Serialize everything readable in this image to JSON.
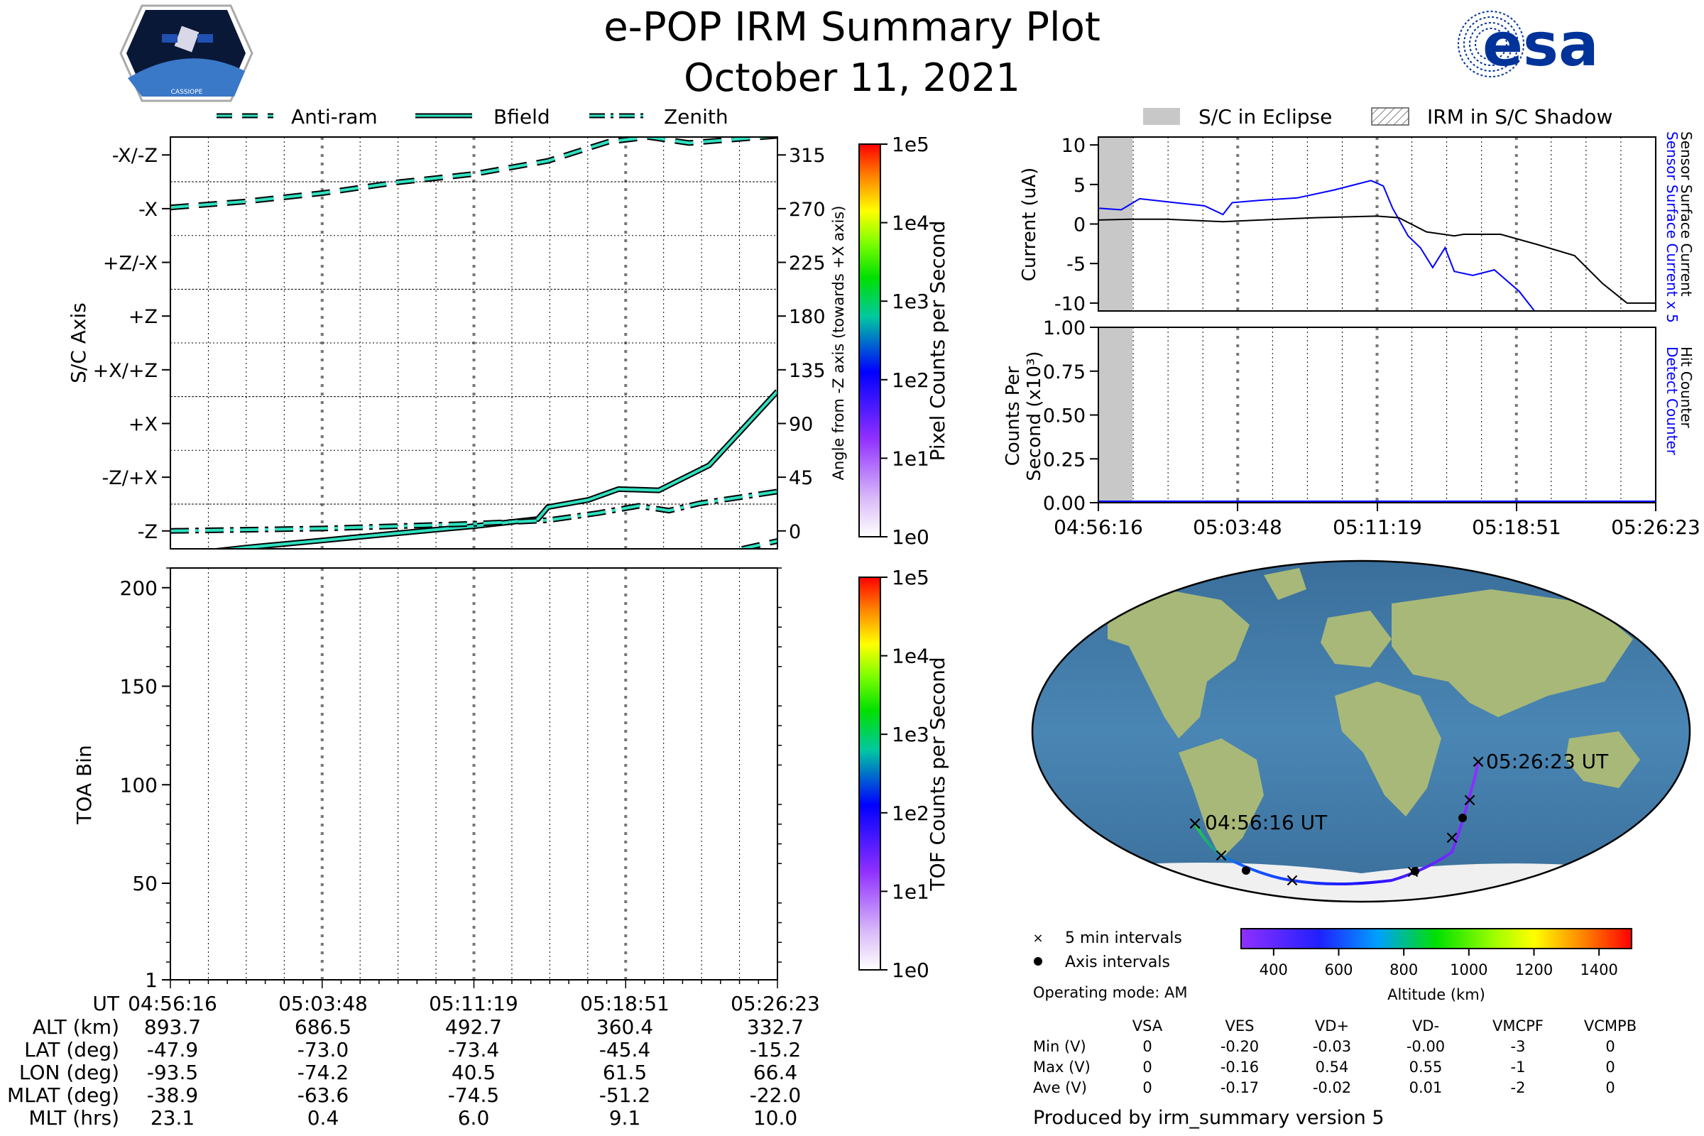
{
  "header": {
    "title": "e-POP IRM Summary Plot",
    "date": "October 11, 2021",
    "left_logo_text": "CASSIOPE",
    "right_logo_text": "esa"
  },
  "legend_axis": {
    "items": [
      "Anti-ram",
      "Bfield",
      "Zenith"
    ]
  },
  "legend_eclipse": {
    "items": [
      "S/C in Eclipse",
      "IRM in S/C Shadow"
    ]
  },
  "colors": {
    "accent_cyan": "#2fe0c0",
    "eclipse_gray": "#c8c8c8",
    "current_blue": "#0000ff"
  },
  "time_ticks": [
    "04:56:16",
    "05:03:48",
    "05:11:19",
    "05:18:51",
    "05:26:23"
  ],
  "ephemeris": {
    "ut_label": "UT",
    "rows": [
      {
        "label": "ALT (km)",
        "values": [
          "893.7",
          "686.5",
          "492.7",
          "360.4",
          "332.7"
        ]
      },
      {
        "label": "LAT (deg)",
        "values": [
          "-47.9",
          "-73.0",
          "-73.4",
          "-45.4",
          "-15.2"
        ]
      },
      {
        "label": "LON (deg)",
        "values": [
          "-93.5",
          "-74.2",
          "40.5",
          "61.5",
          "66.4"
        ]
      },
      {
        "label": "MLAT (deg)",
        "values": [
          "-38.9",
          "-63.6",
          "-74.5",
          "-51.2",
          "-22.0"
        ]
      },
      {
        "label": "MLT (hrs)",
        "values": [
          "23.1",
          "0.4",
          "6.0",
          "9.1",
          "10.0"
        ]
      }
    ]
  },
  "axis_panel": {
    "ylabel": "S/C Axis",
    "left_ticks": [
      "-X/-Z",
      "-X",
      "+Z/-X",
      "+Z",
      "+X/+Z",
      "+X",
      "-Z/+X",
      "-Z"
    ],
    "right_ticks": [
      "315",
      "270",
      "225",
      "180",
      "135",
      "90",
      "45",
      "0"
    ],
    "right_label": "Angle from -Z axis (towards +X axis)",
    "colorbar_label": "Pixel Counts per Second",
    "colorbar_ticks": [
      "1e5",
      "1e4",
      "1e3",
      "1e2",
      "1e1",
      "1e0"
    ]
  },
  "toa_panel": {
    "ylabel": "TOA Bin",
    "yticks": [
      "200",
      "150",
      "100",
      "50",
      "1"
    ],
    "colorbar_label": "TOF Counts per Second",
    "colorbar_ticks": [
      "1e5",
      "1e4",
      "1e3",
      "1e2",
      "1e1",
      "1e0"
    ]
  },
  "current_panel": {
    "ylabel": "Current (uA)",
    "yticks": [
      "10",
      "5",
      "0",
      "-5",
      "-10"
    ],
    "right_label_blue": "Sensor Surface Current x 5",
    "right_label_black": "Sensor Surface Current"
  },
  "counts_panel": {
    "ylabel_line1": "Counts Per",
    "ylabel_line2": "Second (x10³)",
    "yticks": [
      "1.00",
      "0.75",
      "0.50",
      "0.25",
      "0.00"
    ],
    "right_label_blue": "Detect Counter",
    "right_label_black": "Hit Counter"
  },
  "map": {
    "start_label": "04:56:16 UT",
    "end_label": "05:26:23 UT",
    "legend_5min": "5 min intervals",
    "legend_axis": "Axis intervals",
    "operating_mode": "Operating mode: AM",
    "altitude_label": "Altitude (km)",
    "altitude_ticks": [
      "400",
      "600",
      "800",
      "1000",
      "1200",
      "1400"
    ]
  },
  "voltage_table": {
    "columns": [
      "VSA",
      "VES",
      "VD+",
      "VD-",
      "VMCPF",
      "VCMPB"
    ],
    "rows": [
      {
        "label": "Min (V)",
        "values": [
          "0",
          "-0.20",
          "-0.03",
          "-0.00",
          "-3",
          "0"
        ]
      },
      {
        "label": "Max (V)",
        "values": [
          "0",
          "-0.16",
          "0.54",
          "0.55",
          "-1",
          "0"
        ]
      },
      {
        "label": "Ave (V)",
        "values": [
          "0",
          "-0.17",
          "-0.02",
          "0.01",
          "-2",
          "0"
        ]
      }
    ]
  },
  "footer": "Produced by irm_summary version 5",
  "chart_data": [
    {
      "type": "line",
      "title": "S/C Axis",
      "xlabel": "UT",
      "ylabel": "Angle from -Z axis (towards +X axis)",
      "x": [
        "04:56:16",
        "05:03:48",
        "05:11:19",
        "05:18:51",
        "05:26:23"
      ],
      "xlim": [
        "04:56:16",
        "05:26:23"
      ],
      "ylim": [
        -15,
        330
      ],
      "series": [
        {
          "name": "Anti-ram",
          "x": [
            "04:56:16",
            "05:00:00",
            "05:03:48",
            "05:07:30",
            "05:11:19",
            "05:15:00",
            "05:18:00",
            "05:20:00",
            "05:22:00",
            "05:26:23"
          ],
          "values": [
            271,
            276,
            283,
            292,
            299,
            310,
            326,
            330,
            325,
            331
          ]
        },
        {
          "name": "Bfield",
          "x": [
            "04:56:16",
            "05:00:00",
            "05:03:48",
            "05:07:30",
            "05:11:19",
            "05:14:30",
            "05:15:00",
            "05:17:00",
            "05:18:30",
            "05:20:30",
            "05:23:00",
            "05:26:23"
          ],
          "values": [
            -21,
            -14,
            -8,
            -2,
            4,
            10,
            20,
            26,
            35,
            34,
            55,
            117
          ]
        },
        {
          "name": "Zenith",
          "x": [
            "04:56:16",
            "05:03:48",
            "05:11:19",
            "05:15:00",
            "05:17:30",
            "05:19:30",
            "05:21:00",
            "05:22:30",
            "05:26:23"
          ],
          "values": [
            0,
            2,
            6,
            9,
            15,
            21,
            17,
            23,
            33
          ]
        }
      ]
    },
    {
      "type": "heatmap",
      "title": "TOA Bin",
      "xlabel": "UT",
      "ylabel": "TOA Bin",
      "ylim": [
        1,
        210
      ],
      "colorbar": "TOF Counts per Second",
      "values": []
    },
    {
      "type": "line",
      "title": "Current",
      "xlabel": "UT",
      "ylabel": "Current (uA)",
      "ylim": [
        -11,
        11
      ],
      "series": [
        {
          "name": "Sensor Surface Current x 5",
          "x": [
            "04:56:16",
            "04:57:30",
            "04:58:30",
            "05:00:00",
            "05:02:00",
            "05:03:00",
            "05:03:30",
            "05:05:00",
            "05:07:00",
            "05:09:00",
            "05:11:00",
            "05:11:40",
            "05:12:10",
            "05:13:00",
            "05:13:40",
            "05:14:20",
            "05:15:00",
            "05:15:30",
            "05:16:30",
            "05:17:40",
            "05:19:00",
            "05:20:00"
          ],
          "values": [
            2,
            1.8,
            3.2,
            2.8,
            2.3,
            1.2,
            2.7,
            3,
            3.3,
            4.3,
            5.5,
            4.8,
            2,
            -1.5,
            -3,
            -5.5,
            -3,
            -6,
            -6.5,
            -5.8,
            -8.5,
            -11.5
          ]
        },
        {
          "name": "Sensor Surface Current",
          "x": [
            "04:56:16",
            "04:58:00",
            "05:00:00",
            "05:03:00",
            "05:05:00",
            "05:08:00",
            "05:11:19",
            "05:12:30",
            "05:14:00",
            "05:15:30",
            "05:16:00",
            "05:18:00",
            "05:20:00",
            "05:22:00",
            "05:23:30",
            "05:24:50",
            "05:26:23"
          ],
          "values": [
            0.5,
            0.6,
            0.6,
            0.3,
            0.5,
            0.8,
            1,
            0.8,
            -1,
            -1.5,
            -1.3,
            -1.3,
            -2.6,
            -4,
            -7.5,
            -10,
            -10
          ]
        }
      ]
    },
    {
      "type": "line",
      "title": "Counts",
      "xlabel": "UT",
      "ylabel": "Counts Per Second (x10³)",
      "ylim": [
        0,
        1
      ],
      "series": [
        {
          "name": "Detect Counter",
          "x": [
            "04:56:16",
            "05:26:23"
          ],
          "values": [
            0,
            0
          ]
        },
        {
          "name": "Hit Counter",
          "x": [
            "04:56:16",
            "05:26:23"
          ],
          "values": [
            0,
            0
          ]
        }
      ]
    }
  ]
}
